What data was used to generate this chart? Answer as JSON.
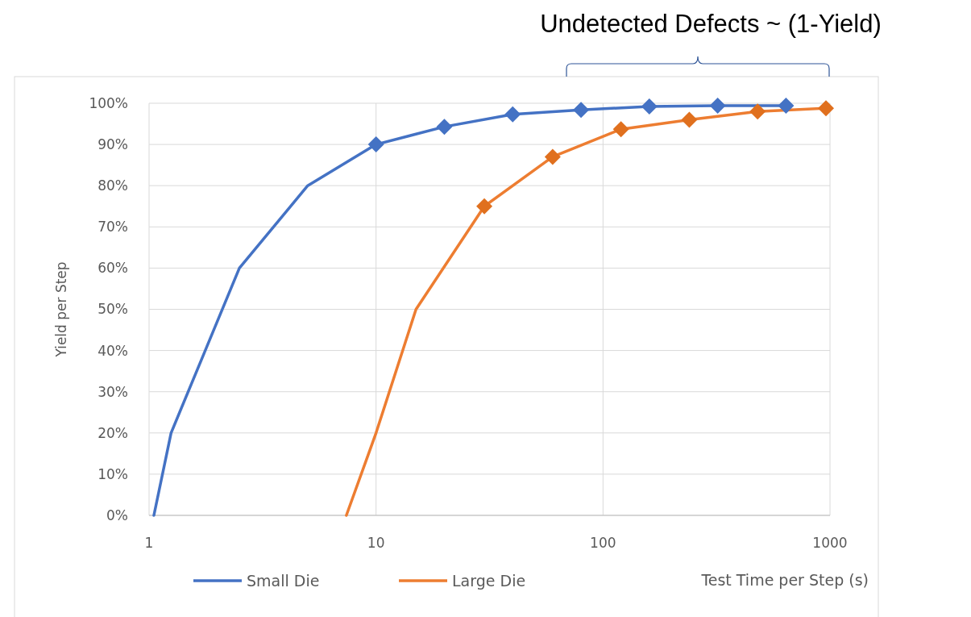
{
  "chart_data": {
    "type": "line",
    "xlabel": "Test Time per Step (s)",
    "ylabel": "Yield per Step",
    "log": "x",
    "xlim": [
      1,
      1000
    ],
    "xticks": [
      1,
      10,
      100,
      1000
    ],
    "ylim": [
      0,
      100
    ],
    "yticks": [
      {
        "value": 0,
        "label": "0%"
      },
      {
        "value": 10,
        "label": "10%"
      },
      {
        "value": 20,
        "label": "20%"
      },
      {
        "value": 30,
        "label": "30%"
      },
      {
        "value": 40,
        "label": "40%"
      },
      {
        "value": 50,
        "label": "50%"
      },
      {
        "value": 60,
        "label": "60%"
      },
      {
        "value": 70,
        "label": "70%"
      },
      {
        "value": 80,
        "label": "80%"
      },
      {
        "value": 90,
        "label": "90%"
      },
      {
        "value": 100,
        "label": "100%"
      }
    ],
    "grid": true,
    "legend": "bottom",
    "line_style": "solid",
    "series": [
      {
        "name": "Small Die",
        "color": "#4472c4",
        "marker": "none",
        "x": [
          1.05,
          1.25,
          2.5,
          5,
          10,
          20,
          40,
          80,
          160,
          320,
          640
        ],
        "values": [
          0,
          20,
          60,
          80,
          90,
          94.3,
          97.3,
          98.4,
          99.2,
          99.4,
          99.4
        ]
      },
      {
        "name": "Large Die",
        "color": "#ed7d31",
        "marker": "none",
        "x": [
          7.4,
          10,
          15,
          30,
          60,
          120,
          240,
          480,
          960
        ],
        "values": [
          0,
          20,
          50,
          75,
          87,
          93.7,
          96,
          98,
          98.8
        ]
      },
      {
        "type": "scatter",
        "color": "#4472c4",
        "marker": "diamond",
        "x": [
          10,
          20,
          40,
          80,
          160,
          320,
          640
        ],
        "values": [
          90,
          94.3,
          97.3,
          98.4,
          99.2,
          99.4,
          99.4
        ]
      },
      {
        "type": "scatter",
        "color": "#e0701e",
        "marker": "diamond",
        "x": [
          30,
          60,
          120,
          240,
          480,
          960
        ],
        "values": [
          75,
          87,
          93.7,
          96,
          98,
          98.8
        ]
      }
    ],
    "annotations": [
      "Undetected Defects ~ (1-Yield)"
    ]
  }
}
